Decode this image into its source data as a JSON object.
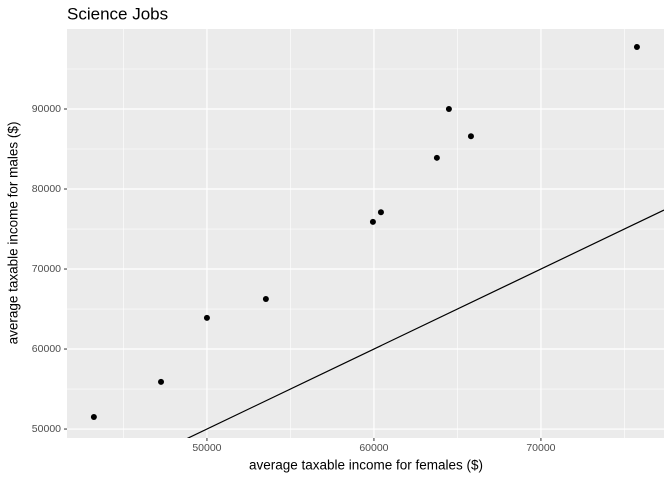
{
  "chart_data": {
    "type": "scatter",
    "title": "Science Jobs",
    "x_label": "average taxable income for females ($)",
    "y_label": "average taxable income for males ($)",
    "x": [
      43230,
      47250,
      50000,
      53530,
      59940,
      60420,
      63770,
      64490,
      65810,
      75750
    ],
    "values": [
      51500,
      55900,
      63900,
      66250,
      75900,
      77100,
      83900,
      90000,
      86600,
      97750
    ],
    "color": "#000000",
    "xlim": [
      41620,
      77370
    ],
    "ylim": [
      48880,
      100000
    ],
    "xticks": [
      50000,
      60000,
      70000
    ],
    "yticks": [
      50000,
      60000,
      70000,
      80000,
      90000
    ],
    "x_minor_grid": [
      45000,
      55000,
      65000,
      75000
    ],
    "y_minor_grid": [
      55000,
      65000,
      75000,
      85000,
      95000
    ],
    "reference_line": {
      "slope": 1,
      "intercept": 0
    },
    "grid": true
  }
}
